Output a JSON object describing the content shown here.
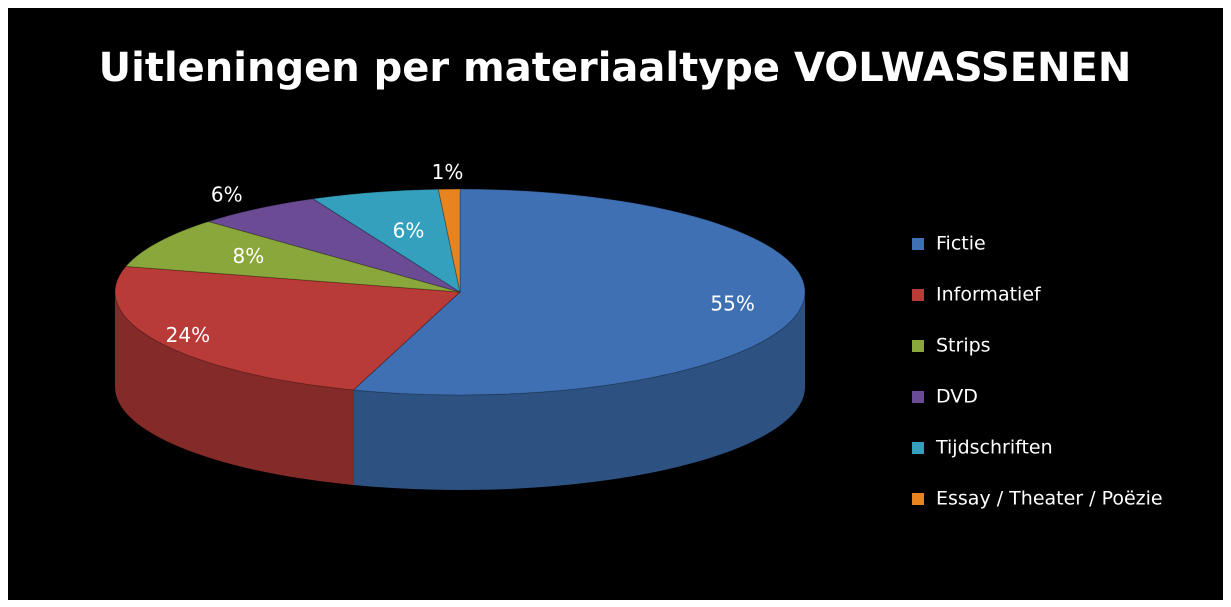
{
  "chart_data": {
    "type": "pie",
    "title": "Uitleningen per materiaaltype VOLWASSENEN",
    "categories": [
      "Fictie",
      "Informatief",
      "Strips",
      "DVD",
      "Tijdschriften",
      "Essay / Theater / Poëzie"
    ],
    "values": [
      55,
      24,
      8,
      6,
      6,
      1
    ],
    "value_labels": [
      "55%",
      "24%",
      "8%",
      "6%",
      "6%",
      "1%"
    ],
    "colors": [
      "#3f70b3",
      "#b83b37",
      "#8aa73c",
      "#6b4b94",
      "#34a0bd",
      "#e8841f"
    ],
    "legend": "right"
  }
}
